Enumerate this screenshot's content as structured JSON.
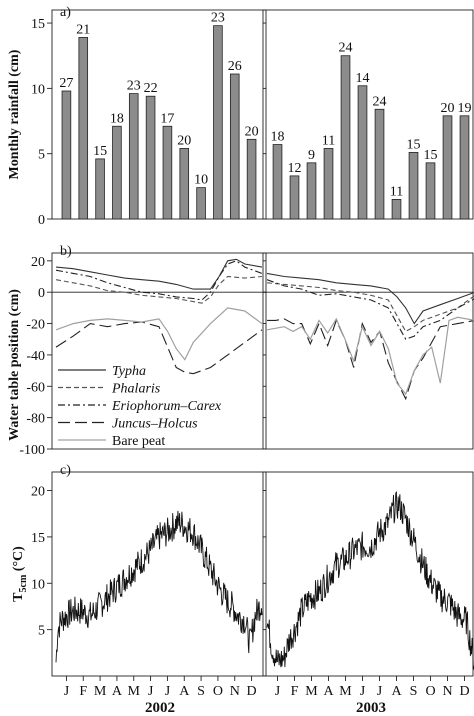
{
  "panel_labels": {
    "a": "a)",
    "b": "b)",
    "c": "c)"
  },
  "x_labels": {
    "left_year": "2002",
    "right_year": "2003"
  },
  "chart_data": [
    {
      "id": "rain",
      "type": "bar",
      "ylabel": "Monthly rainfall (cm)",
      "ylim": [
        0,
        16
      ],
      "yticks": [
        0,
        5,
        10,
        15
      ],
      "categories": [
        "J",
        "F",
        "M",
        "A",
        "M",
        "J",
        "J",
        "A",
        "S",
        "O",
        "N",
        "D"
      ],
      "series": [
        {
          "year": "2002",
          "values": [
            9.8,
            13.9,
            4.6,
            7.1,
            9.6,
            9.4,
            7.1,
            5.4,
            2.4,
            14.8,
            11.1,
            6.1
          ],
          "day_counts": [
            "27",
            "21",
            "15",
            "18",
            "23",
            "22",
            "17",
            "20",
            "10",
            "23",
            "26",
            "20"
          ]
        },
        {
          "year": "2003",
          "values": [
            5.7,
            3.3,
            4.3,
            5.4,
            12.5,
            10.2,
            8.4,
            1.5,
            5.1,
            4.3,
            7.9,
            7.9
          ],
          "day_counts": [
            "18",
            "12",
            "9",
            "11",
            "24",
            "14",
            "24",
            "11",
            "15",
            "15",
            "20",
            "19"
          ]
        }
      ]
    },
    {
      "id": "wt",
      "type": "line",
      "ylabel": "Water table position (cm)",
      "ylim": [
        -100,
        25
      ],
      "yticks": [
        20,
        0,
        -20,
        -40,
        -60,
        -80,
        -100
      ],
      "legend": [
        {
          "name": "Typha",
          "style": "solid",
          "color": "#333333",
          "italic": true
        },
        {
          "name": "Phalaris",
          "style": "dashed",
          "color": "#555555",
          "italic": true
        },
        {
          "name": "Eriophorum–Carex",
          "style": "dashdot",
          "color": "#222222",
          "italic": true
        },
        {
          "name": "Juncus–Holcus",
          "style": "longdash",
          "color": "#222222",
          "italic": true
        },
        {
          "name": "Bare peat",
          "style": "solid",
          "color": "#a0a0a0",
          "italic": false
        }
      ],
      "years": [
        {
          "year": "2002",
          "series": [
            {
              "name": "Typha",
              "x": [
                0,
                1,
                2,
                3,
                4,
                5,
                6,
                7,
                8,
                9,
                9.5,
                10,
                10.5,
                11,
                12
              ],
              "y": [
                16,
                15,
                13,
                11,
                9,
                8,
                7,
                5,
                2,
                2,
                10,
                20,
                21,
                18,
                16
              ]
            },
            {
              "name": "Phalaris",
              "x": [
                0,
                1,
                2,
                3,
                4,
                5,
                6,
                7,
                8,
                8.5,
                9,
                9.5,
                10,
                11,
                12
              ],
              "y": [
                8,
                6,
                4,
                1,
                0,
                -2,
                -3,
                -4,
                -6,
                -7,
                -3,
                5,
                10,
                9,
                10
              ]
            },
            {
              "name": "Eriophorum–Carex",
              "x": [
                0,
                1,
                2,
                3,
                4,
                5,
                6,
                7,
                8,
                8.5,
                9,
                9.5,
                10,
                10.5,
                11,
                12
              ],
              "y": [
                14,
                12,
                10,
                6,
                3,
                0,
                -1,
                -3,
                -4,
                -5,
                0,
                10,
                18,
                20,
                16,
                12
              ]
            },
            {
              "name": "Juncus–Holcus",
              "x": [
                0,
                1,
                2,
                3,
                4,
                5,
                6,
                7,
                7.5,
                8,
                9,
                10,
                11,
                12
              ],
              "y": [
                -35,
                -28,
                -20,
                -22,
                -20,
                -19,
                -22,
                -48,
                -51,
                -52,
                -48,
                -40,
                -32,
                -24
              ]
            },
            {
              "name": "Bare peat",
              "x": [
                0,
                1,
                2,
                3,
                4,
                5,
                6,
                6.5,
                7,
                7.5,
                8,
                9,
                10,
                11,
                12
              ],
              "y": [
                -24,
                -20,
                -18,
                -17,
                -18,
                -19,
                -17,
                -25,
                -36,
                -43,
                -32,
                -20,
                -10,
                -12,
                -20
              ]
            }
          ]
        },
        {
          "year": "2003",
          "series": [
            {
              "name": "Typha",
              "x": [
                0,
                1,
                2,
                3,
                4,
                5,
                6,
                7,
                7.5,
                8,
                8.5,
                9,
                10,
                11,
                12
              ],
              "y": [
                12,
                10,
                9,
                8,
                6,
                5,
                4,
                2,
                -3,
                -10,
                -20,
                -12,
                -8,
                -4,
                0
              ]
            },
            {
              "name": "Phalaris",
              "x": [
                0,
                1,
                2,
                3,
                4,
                5,
                6,
                7,
                7.5,
                8,
                8.5,
                9,
                10,
                11,
                12
              ],
              "y": [
                6,
                5,
                4,
                3,
                1,
                0,
                -2,
                -5,
                -15,
                -25,
                -22,
                -18,
                -14,
                -10,
                -2
              ]
            },
            {
              "name": "Eriophorum–Carex",
              "x": [
                0,
                1,
                2,
                3,
                4,
                5,
                6,
                7,
                7.5,
                8,
                8.5,
                9,
                10,
                11,
                12
              ],
              "y": [
                8,
                4,
                2,
                -2,
                -1,
                -3,
                -5,
                -10,
                -20,
                -30,
                -28,
                -22,
                -18,
                -10,
                -4
              ]
            },
            {
              "name": "Juncus–Holcus",
              "x": [
                0,
                0.5,
                1,
                1.5,
                2,
                2.5,
                3,
                3.5,
                4,
                4.5,
                5,
                5.5,
                6,
                6.5,
                7,
                7.5,
                8,
                8.5,
                9,
                9.5,
                10,
                11,
                12
              ],
              "y": [
                -18,
                -18,
                -17,
                -20,
                -20,
                -33,
                -20,
                -34,
                -18,
                -30,
                -48,
                -20,
                -32,
                -25,
                -45,
                -57,
                -68,
                -50,
                -42,
                -32,
                -22,
                -20,
                -18
              ]
            },
            {
              "name": "Bare peat",
              "x": [
                0,
                1,
                1.5,
                2,
                2.5,
                3,
                3.5,
                4,
                4.5,
                5,
                5.5,
                6,
                6.5,
                7,
                7.5,
                8,
                8.5,
                9,
                9.5,
                10,
                10.5,
                11,
                12
              ],
              "y": [
                -24,
                -22,
                -25,
                -22,
                -30,
                -18,
                -26,
                -17,
                -30,
                -44,
                -22,
                -34,
                -25,
                -36,
                -58,
                -65,
                -50,
                -40,
                -35,
                -58,
                -18,
                -16,
                -18
              ]
            }
          ]
        }
      ]
    },
    {
      "id": "temp",
      "type": "line",
      "ylabel_main": "T",
      "ylabel_sub": "5cm",
      "ylabel_unit": " (°C)",
      "ylim": [
        0,
        22
      ],
      "yticks": [
        5,
        10,
        15,
        20
      ],
      "xticks": [
        "J",
        "F",
        "M",
        "A",
        "M",
        "J",
        "J",
        "A",
        "S",
        "O",
        "N",
        "D"
      ],
      "years": [
        {
          "year": "2002",
          "x": [
            0,
            0.1,
            0.3,
            0.6,
            1,
            1.5,
            2,
            2.5,
            3,
            3.5,
            4,
            4.5,
            5,
            5.5,
            6,
            6.5,
            7,
            7.3,
            7.6,
            8,
            8.5,
            9,
            9.5,
            10,
            10.3,
            10.6,
            11,
            11.3,
            11.6,
            12
          ],
          "y": [
            1.5,
            5,
            6,
            6.5,
            7,
            7,
            6.5,
            7.5,
            8.5,
            9.5,
            10.5,
            11.5,
            12.5,
            13.5,
            15,
            15.5,
            16.5,
            16.5,
            16,
            15.5,
            13.5,
            11.5,
            9.5,
            8,
            7.5,
            6.5,
            6,
            3.5,
            6.5,
            8
          ]
        },
        {
          "year": "2003",
          "x": [
            0,
            0.3,
            0.6,
            1,
            1.3,
            1.6,
            2,
            2.5,
            3,
            3.5,
            4,
            4.5,
            5,
            5.5,
            6,
            6.5,
            7,
            7.3,
            7.6,
            8,
            8.5,
            9,
            9.5,
            10,
            10.5,
            11,
            11.5,
            11.8,
            12
          ],
          "y": [
            6,
            3,
            1.5,
            2,
            4,
            5,
            7,
            8.5,
            9,
            10.5,
            12,
            12.5,
            13.5,
            14,
            14,
            15.5,
            16.5,
            18,
            18.5,
            17,
            14.5,
            12,
            10,
            8.5,
            8,
            6.5,
            6,
            3,
            1
          ]
        }
      ]
    }
  ]
}
